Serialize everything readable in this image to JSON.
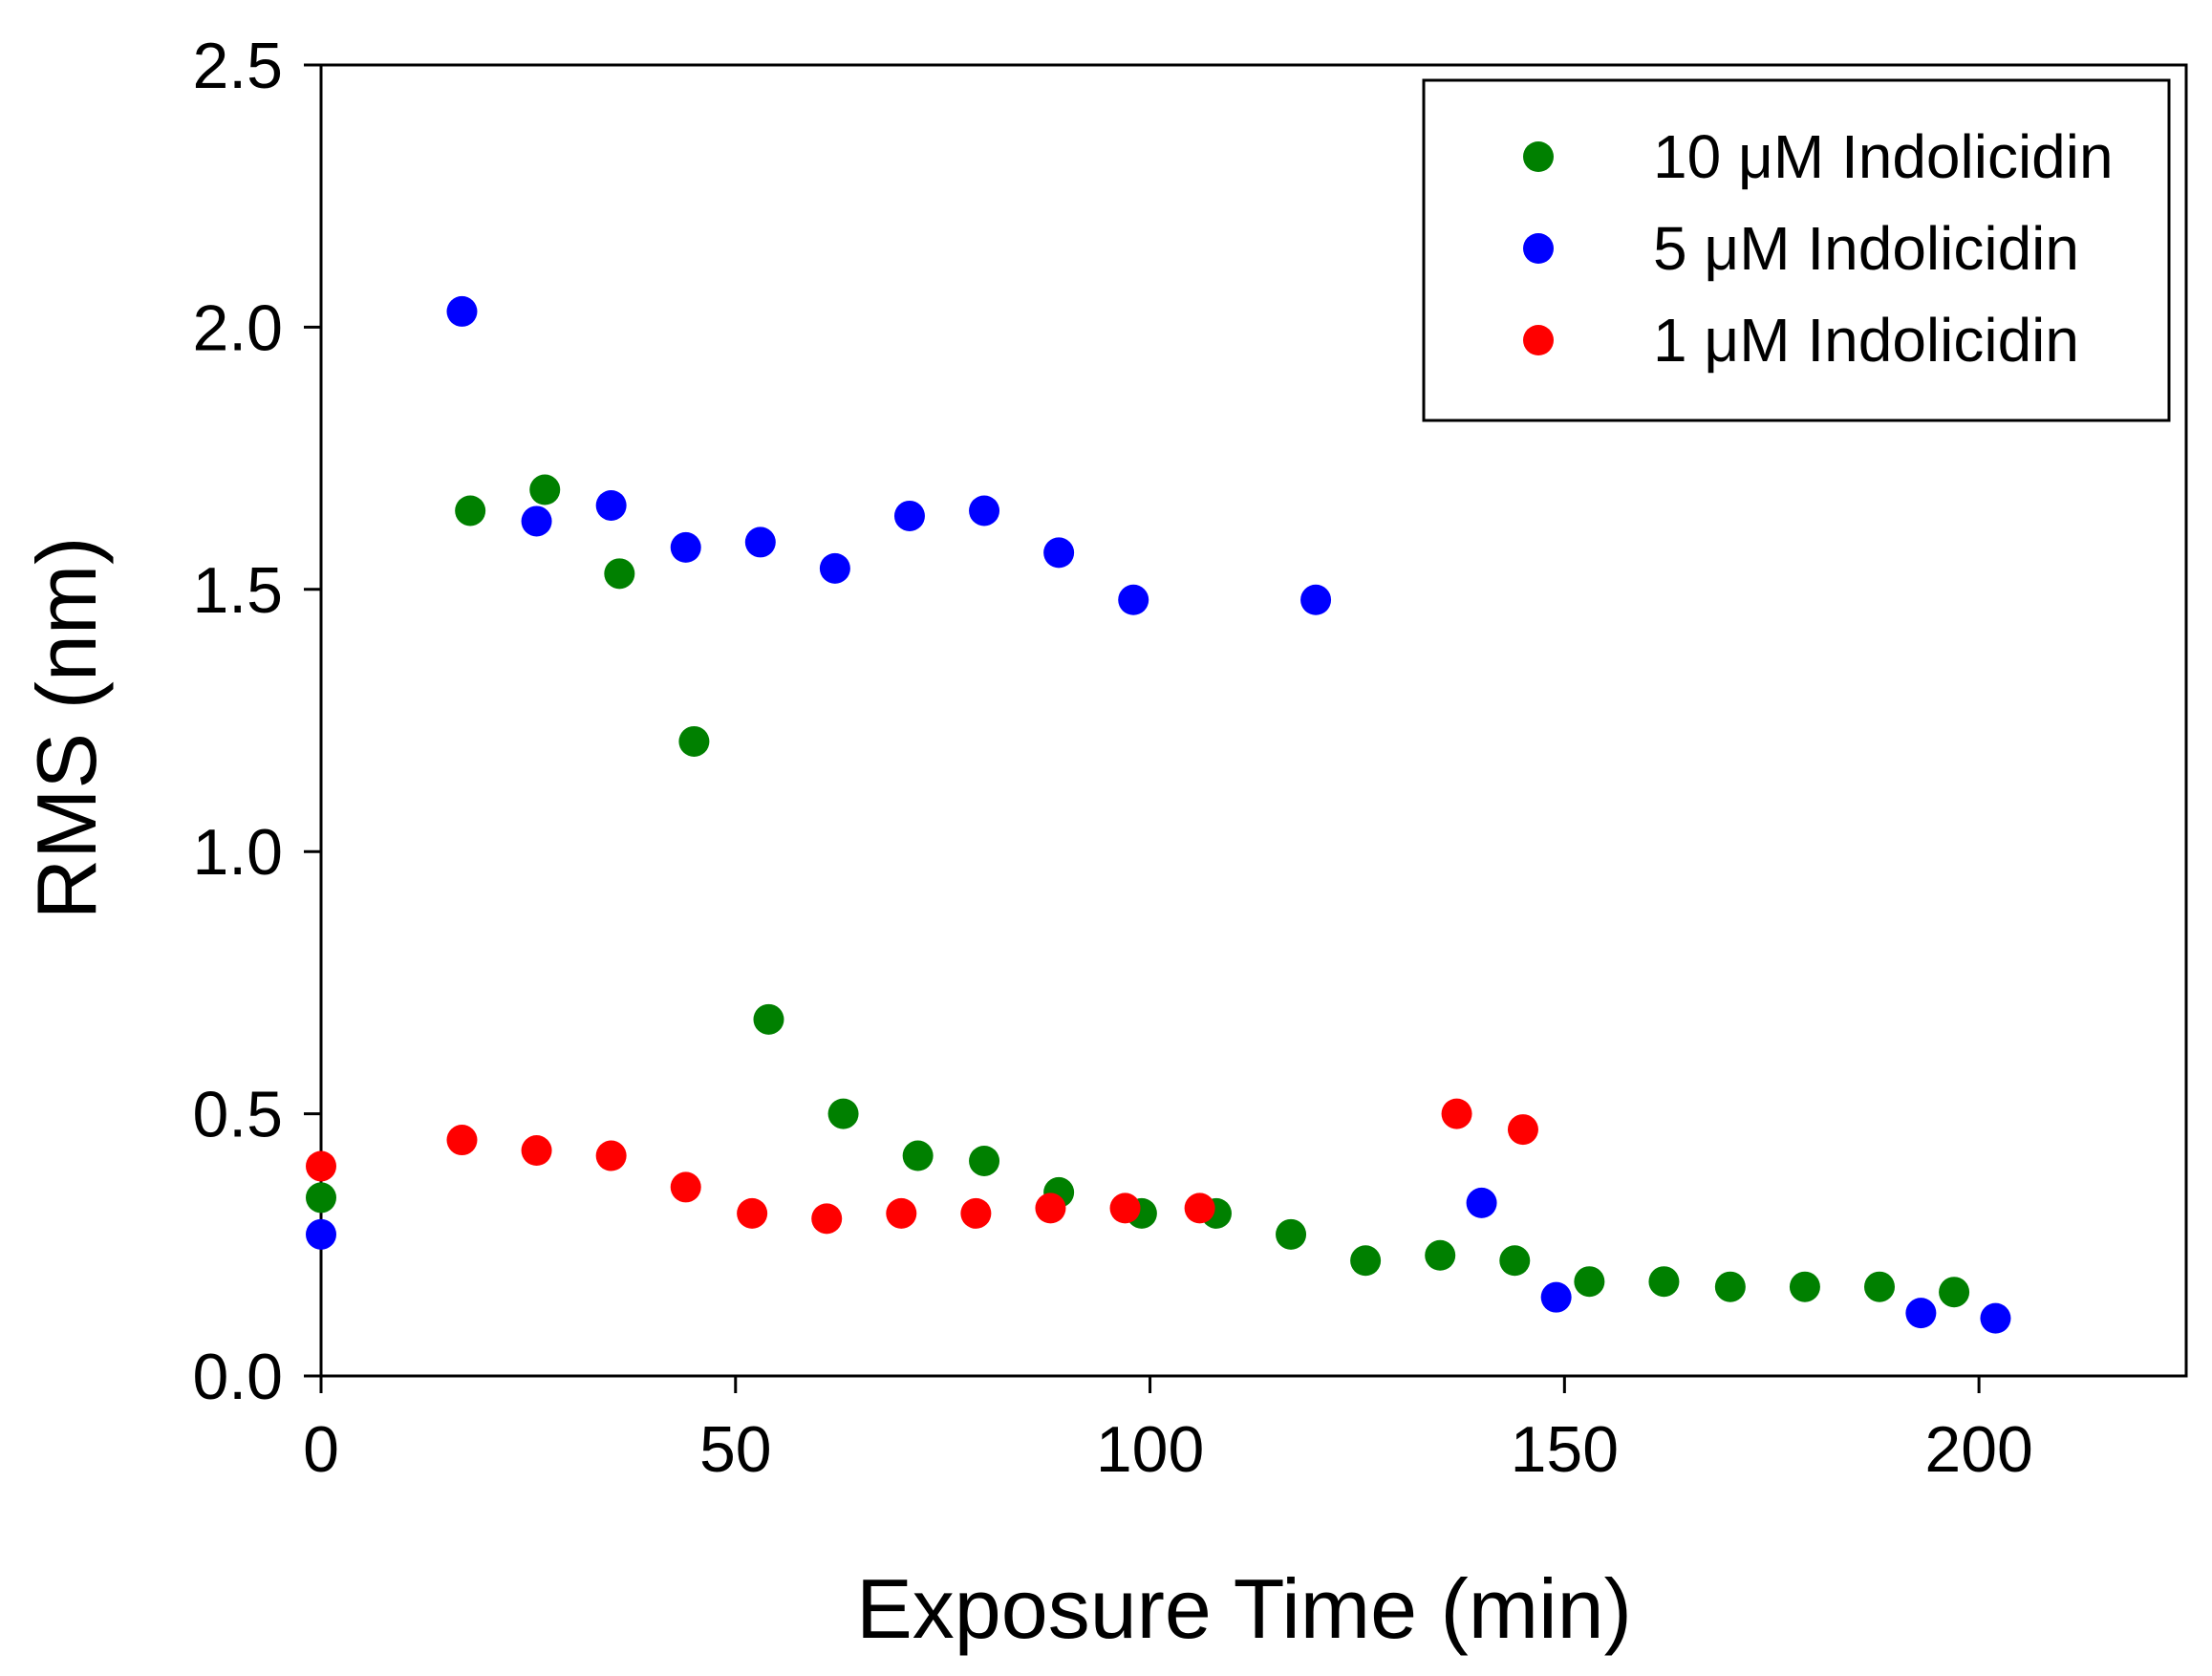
{
  "chart_data": {
    "type": "scatter",
    "title": "",
    "xlabel": "Exposure Time (min)",
    "ylabel": "RMS (nm)",
    "xlim": [
      0,
      225
    ],
    "ylim": [
      0,
      2.5
    ],
    "xticks": [
      0,
      50,
      100,
      150,
      200
    ],
    "yticks": [
      0.0,
      0.5,
      1.0,
      1.5,
      2.0,
      2.5
    ],
    "xtick_labels": [
      "0",
      "50",
      "100",
      "150",
      "200"
    ],
    "ytick_labels": [
      "0.0",
      "0.5",
      "1.0",
      "1.5",
      "2.0",
      "2.5"
    ],
    "grid": false,
    "legend_position": "top-right",
    "series": [
      {
        "name": "10 μM Indolicidin",
        "color": "#008000",
        "points": [
          [
            0,
            0.34
          ],
          [
            18,
            1.65
          ],
          [
            27,
            1.69
          ],
          [
            36,
            1.53
          ],
          [
            45,
            1.21
          ],
          [
            54,
            0.68
          ],
          [
            63,
            0.5
          ],
          [
            72,
            0.42
          ],
          [
            80,
            0.41
          ],
          [
            89,
            0.35
          ],
          [
            99,
            0.31
          ],
          [
            108,
            0.31
          ],
          [
            117,
            0.27
          ],
          [
            126,
            0.22
          ],
          [
            135,
            0.23
          ],
          [
            144,
            0.22
          ],
          [
            153,
            0.18
          ],
          [
            162,
            0.18
          ],
          [
            170,
            0.17
          ],
          [
            179,
            0.17
          ],
          [
            188,
            0.17
          ],
          [
            197,
            0.16
          ]
        ]
      },
      {
        "name": "5 μM Indolicidin",
        "color": "#0000ff",
        "points": [
          [
            0,
            0.27
          ],
          [
            17,
            2.03
          ],
          [
            26,
            1.63
          ],
          [
            35,
            1.66
          ],
          [
            44,
            1.58
          ],
          [
            53,
            1.59
          ],
          [
            62,
            1.54
          ],
          [
            71,
            1.64
          ],
          [
            80,
            1.65
          ],
          [
            89,
            1.57
          ],
          [
            98,
            1.48
          ],
          [
            120,
            1.48
          ],
          [
            140,
            0.33
          ],
          [
            149,
            0.15
          ],
          [
            193,
            0.12
          ],
          [
            202,
            0.11
          ]
        ]
      },
      {
        "name": "1 μM Indolicidin",
        "color": "#ff0000",
        "points": [
          [
            0,
            0.4
          ],
          [
            17,
            0.45
          ],
          [
            26,
            0.43
          ],
          [
            35,
            0.42
          ],
          [
            44,
            0.36
          ],
          [
            52,
            0.31
          ],
          [
            61,
            0.3
          ],
          [
            70,
            0.31
          ],
          [
            79,
            0.31
          ],
          [
            88,
            0.32
          ],
          [
            97,
            0.32
          ],
          [
            106,
            0.32
          ],
          [
            137,
            0.5
          ],
          [
            145,
            0.47
          ]
        ]
      }
    ]
  }
}
